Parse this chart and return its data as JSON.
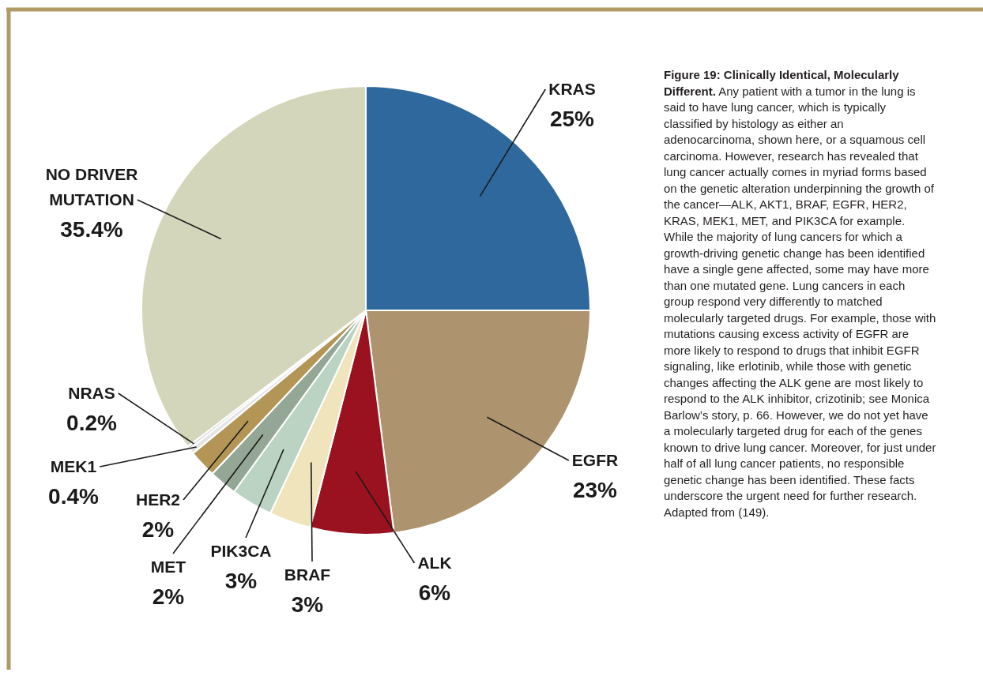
{
  "chart_data": {
    "type": "pie",
    "title": "Figure 19: Clinically Identical, Molecularly Different.",
    "categories": [
      "KRAS",
      "EGFR",
      "ALK",
      "BRAF",
      "PIK3CA",
      "MET",
      "HER2",
      "MEK1",
      "NRAS",
      "NO DRIVER MUTATION"
    ],
    "values": [
      25,
      23,
      6,
      3,
      3,
      2,
      2,
      0.4,
      0.2,
      35.4
    ],
    "colors": [
      "#2e689c",
      "#ad946f",
      "#9a1220",
      "#efe4bc",
      "#bad3c3",
      "#94a695",
      "#b39656",
      "#e4e4e4",
      "#d0d0d0",
      "#d4d6bb"
    ],
    "value_labels": [
      "25%",
      "23%",
      "6%",
      "3%",
      "3%",
      "2%",
      "2%",
      "0.4%",
      "0.2%",
      "35.4%"
    ],
    "annotations": [
      "Any patient with a tumor in the lung is said to have lung cancer, which is typically classified by histology as either an adenocarcinoma, shown here, or a squamous cell carcinoma. However, research has revealed that lung cancer actually comes in myriad forms based on the genetic alteration underpinning the growth of the cancer—ALK, AKT1, BRAF, EGFR, HER2, KRAS, MEK1, MET, and PIK3CA for example. While the majority of lung cancers for which a growth-driving genetic change has been identified have a single gene affected, some may have more than one mutated gene. Lung cancers in each group respond very differently to matched molecularly targeted drugs. For example, those with mutations causing excess activity of EGFR are more likely to respond to drugs that inhibit EGFR signaling, like erlotinib, while those with genetic changes affecting the ALK gene are most likely to respond to the ALK inhibitor, crizotinib; see Monica Barlow’s story, p. 66. However, we do not yet have a molecularly targeted drug for each of the genes known to drive lung cancer. Moreover, for just under half of all lung cancer patients, no responsible genetic change has been identified. These facts underscore the urgent need for further research. Adapted from (149)."
    ]
  }
}
